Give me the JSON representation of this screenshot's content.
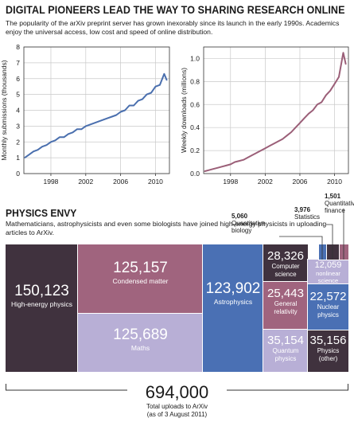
{
  "header": {
    "title": "DIGITAL PIONEERS LEAD THE WAY TO SHARING RESEARCH ONLINE",
    "subtitle": "The popularity of the arXiv preprint server has grown inexorably since its launch in the early 1990s. Academics enjoy the universal access, low cost and speed of online distribution."
  },
  "section2": {
    "title": "PHYSICS ENVY",
    "subtitle": "Mathematicians, astrophysicists and even some biologists have joined high-energy physicists in uploading articles to ArXiv."
  },
  "colors": {
    "submissions_line": "#4a6fae",
    "downloads_line": "#9b5f78"
  },
  "chart_data": [
    {
      "type": "line",
      "ylabel": "Monthly submissions (thousands)",
      "xlabel": "",
      "xticks": [
        1998,
        2002,
        2006,
        2010
      ],
      "yticks": [
        0,
        1,
        2,
        3,
        4,
        5,
        6,
        7,
        8
      ],
      "xlim": [
        1994.9,
        2011.6
      ],
      "ylim": [
        0,
        8
      ],
      "grid": true,
      "series": [
        {
          "x": [
            1995,
            1995.5,
            1996,
            1996.5,
            1997,
            1997.5,
            1998,
            1998.5,
            1999,
            1999.5,
            2000,
            2000.5,
            2001,
            2001.5,
            2002,
            2002.5,
            2003,
            2003.5,
            2004,
            2004.5,
            2005,
            2005.5,
            2006,
            2006.5,
            2007,
            2007.5,
            2008,
            2008.5,
            2009,
            2009.5,
            2010,
            2010.5,
            2011,
            2011.3
          ],
          "y": [
            1.0,
            1.2,
            1.4,
            1.5,
            1.7,
            1.8,
            2.0,
            2.1,
            2.3,
            2.3,
            2.5,
            2.6,
            2.8,
            2.8,
            3.0,
            3.1,
            3.2,
            3.3,
            3.4,
            3.5,
            3.6,
            3.7,
            3.9,
            4.0,
            4.3,
            4.3,
            4.6,
            4.7,
            5.0,
            5.1,
            5.5,
            5.6,
            6.3,
            5.9
          ]
        }
      ]
    },
    {
      "type": "line",
      "ylabel": "Weekly downloads (millions)",
      "xlabel": "",
      "xticks": [
        1998,
        2002,
        2006,
        2010
      ],
      "yticks": [
        0,
        0.2,
        0.4,
        0.6,
        0.8,
        1.0
      ],
      "xlim": [
        1994.9,
        2011.6
      ],
      "ylim": [
        0,
        1.1
      ],
      "grid": true,
      "series": [
        {
          "x": [
            1995,
            1995.5,
            1996,
            1996.5,
            1997,
            1997.5,
            1998,
            1998.5,
            1999,
            1999.5,
            2000,
            2000.5,
            2001,
            2001.5,
            2002,
            2002.5,
            2003,
            2003.5,
            2004,
            2004.5,
            2005,
            2005.5,
            2006,
            2006.5,
            2007,
            2007.5,
            2008,
            2008.5,
            2009,
            2009.5,
            2010,
            2010.5,
            2011,
            2011.3
          ],
          "y": [
            0.02,
            0.03,
            0.04,
            0.05,
            0.06,
            0.07,
            0.08,
            0.1,
            0.11,
            0.12,
            0.14,
            0.16,
            0.18,
            0.2,
            0.22,
            0.24,
            0.26,
            0.28,
            0.3,
            0.33,
            0.36,
            0.4,
            0.44,
            0.48,
            0.52,
            0.55,
            0.6,
            0.62,
            0.68,
            0.72,
            0.78,
            0.84,
            1.05,
            0.95
          ]
        }
      ]
    },
    {
      "type": "treemap",
      "total": {
        "value": "694,000",
        "label": "Total uploads to ArXiv",
        "note": "(as of 3 August 2011)"
      },
      "categories": [
        {
          "name": "High-energy physics",
          "value": "150,123",
          "color": "#40323e"
        },
        {
          "name": "Condensed matter",
          "value": "125,157",
          "color": "#a0647e"
        },
        {
          "name": "Maths",
          "value": "125,689",
          "color": "#b8afd6"
        },
        {
          "name": "Astrophysics",
          "value": "123,902",
          "color": "#4a70b4"
        },
        {
          "name": "Computer science",
          "value": "28,326",
          "color": "#40323e"
        },
        {
          "name": "General relativity",
          "value": "25,443",
          "color": "#a0647e"
        },
        {
          "name": "Quantum physics",
          "value": "35,154",
          "color": "#b8afd6"
        },
        {
          "name": "Physics (other)",
          "value": "35,156",
          "color": "#40323e"
        },
        {
          "name": "nonlinear science",
          "value": "12,059",
          "color": "#b8afd6"
        },
        {
          "name": "Nuclear physics",
          "value": "22,572",
          "color": "#4a70b4"
        },
        {
          "name": "Quantitative biology",
          "value": "5,060",
          "color": "#4a70b4"
        },
        {
          "name": "Statistics",
          "value": "3,976",
          "color": "#40323e"
        },
        {
          "name": "Quantitative finance",
          "value": "1,501",
          "color": "#a0647e"
        }
      ]
    }
  ]
}
